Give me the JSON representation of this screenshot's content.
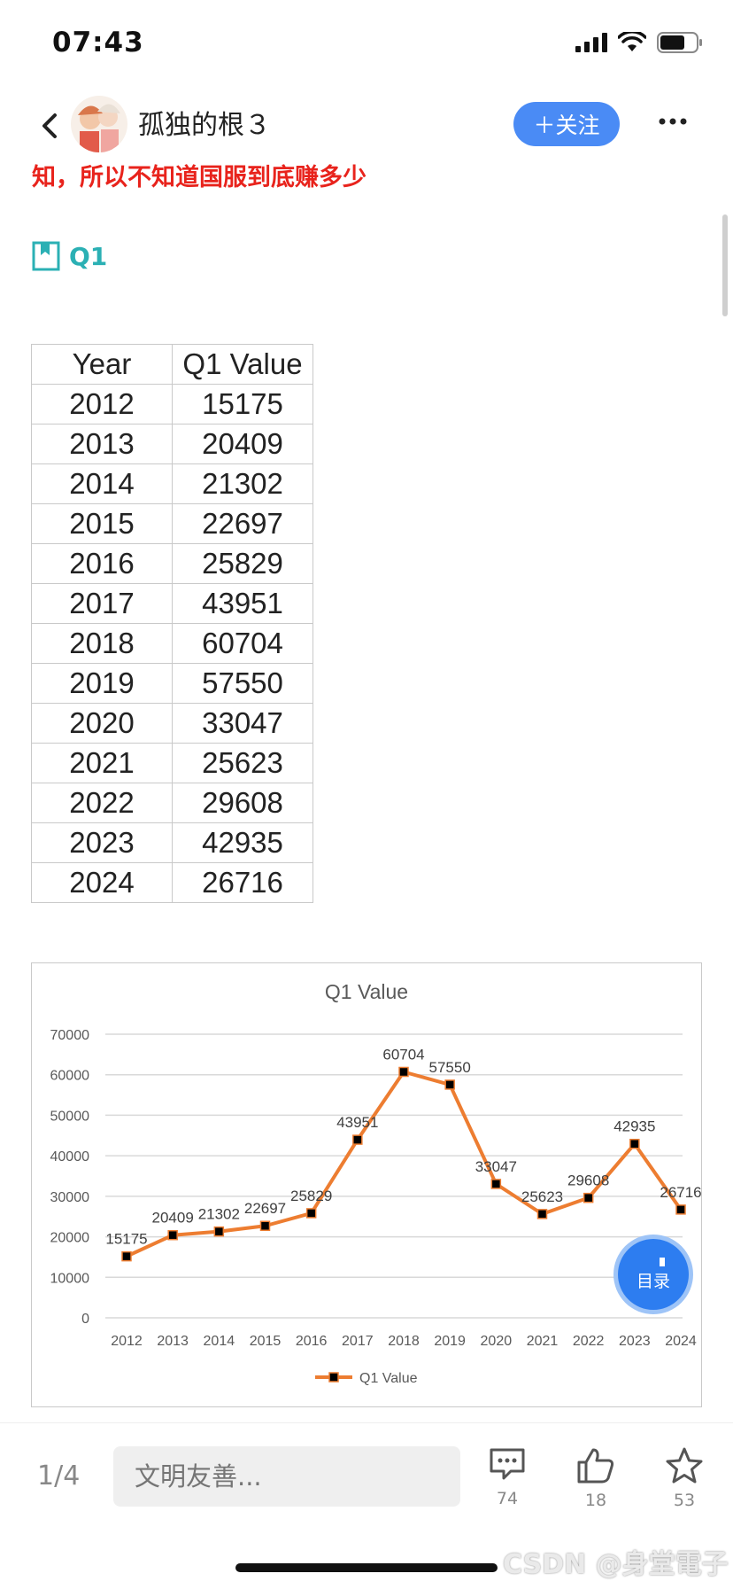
{
  "status_bar": {
    "time": "07:43"
  },
  "header": {
    "user_name": "孤独的根３",
    "follow_label": "＋关注"
  },
  "content": {
    "red_text": "知，所以不知道国服到底赚多少",
    "section_title": "Q1"
  },
  "table": {
    "headers": [
      "Year",
      "Q1 Value"
    ],
    "rows": [
      [
        "2012",
        "15175"
      ],
      [
        "2013",
        "20409"
      ],
      [
        "2014",
        "21302"
      ],
      [
        "2015",
        "22697"
      ],
      [
        "2016",
        "25829"
      ],
      [
        "2017",
        "43951"
      ],
      [
        "2018",
        "60704"
      ],
      [
        "2019",
        "57550"
      ],
      [
        "2020",
        "33047"
      ],
      [
        "2021",
        "25623"
      ],
      [
        "2022",
        "29608"
      ],
      [
        "2023",
        "42935"
      ],
      [
        "2024",
        "26716"
      ]
    ]
  },
  "chart_data": {
    "type": "line",
    "title": "Q1 Value",
    "categories": [
      "2012",
      "2013",
      "2014",
      "2015",
      "2016",
      "2017",
      "2018",
      "2019",
      "2020",
      "2021",
      "2022",
      "2023",
      "2024"
    ],
    "series": [
      {
        "name": "Q1 Value",
        "values": [
          15175,
          20409,
          21302,
          22697,
          25829,
          43951,
          60704,
          57550,
          33047,
          25623,
          29608,
          42935,
          26716
        ]
      }
    ],
    "ylim": [
      0,
      70000
    ],
    "yticks": [
      0,
      10000,
      20000,
      30000,
      40000,
      50000,
      60000,
      70000
    ],
    "grid": true,
    "legend": "bottom",
    "line_color": "#ed7d31",
    "marker_color": "#000000"
  },
  "toc": {
    "label": "目录"
  },
  "bottom_bar": {
    "page_indicator": "1/4",
    "comment_placeholder": "文明友善...",
    "comment_count": "74",
    "like_count": "18",
    "star_count": "53"
  },
  "watermark": "CSDN @身堂電子",
  "colors": {
    "accent": "#4a8bf5",
    "highlight_red": "#e8231c",
    "teal": "#2bb0b4"
  }
}
